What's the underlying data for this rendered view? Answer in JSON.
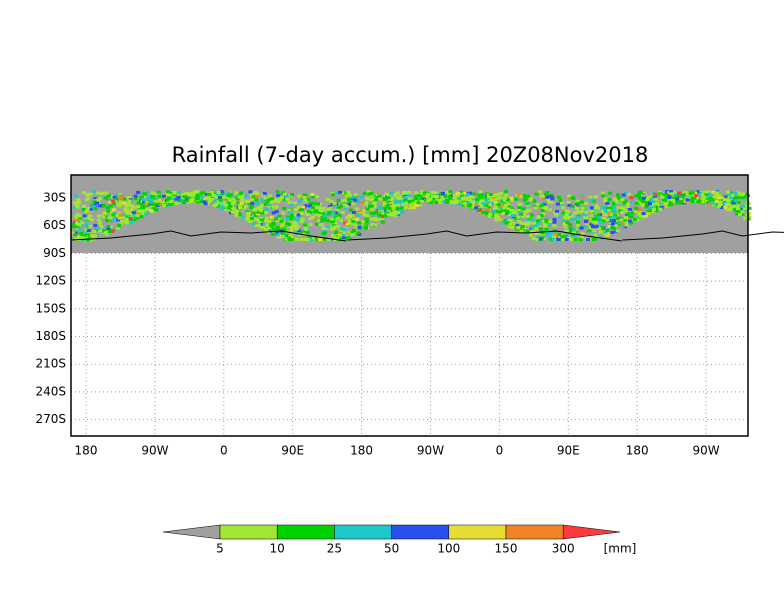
{
  "map": {
    "title": "Rainfall (7-day accum.) [mm] 20Z08Nov2018",
    "y_labels": [
      "30S",
      "60S",
      "90S",
      "120S",
      "150S",
      "180S",
      "210S",
      "240S",
      "270S"
    ],
    "x_labels": [
      "180",
      "90W",
      "0",
      "90E",
      "180",
      "90W",
      "0",
      "90E",
      "180",
      "90W"
    ]
  },
  "colorbar": {
    "labels": [
      "5",
      "10",
      "25",
      "50",
      "100",
      "150",
      "300"
    ],
    "unit": "[mm]",
    "colors": [
      "#a0a0a0",
      "#a0e632",
      "#00d200",
      "#1ec8c8",
      "#2850f0",
      "#e6dc32",
      "#f08228",
      "#fa3c3c"
    ]
  }
}
